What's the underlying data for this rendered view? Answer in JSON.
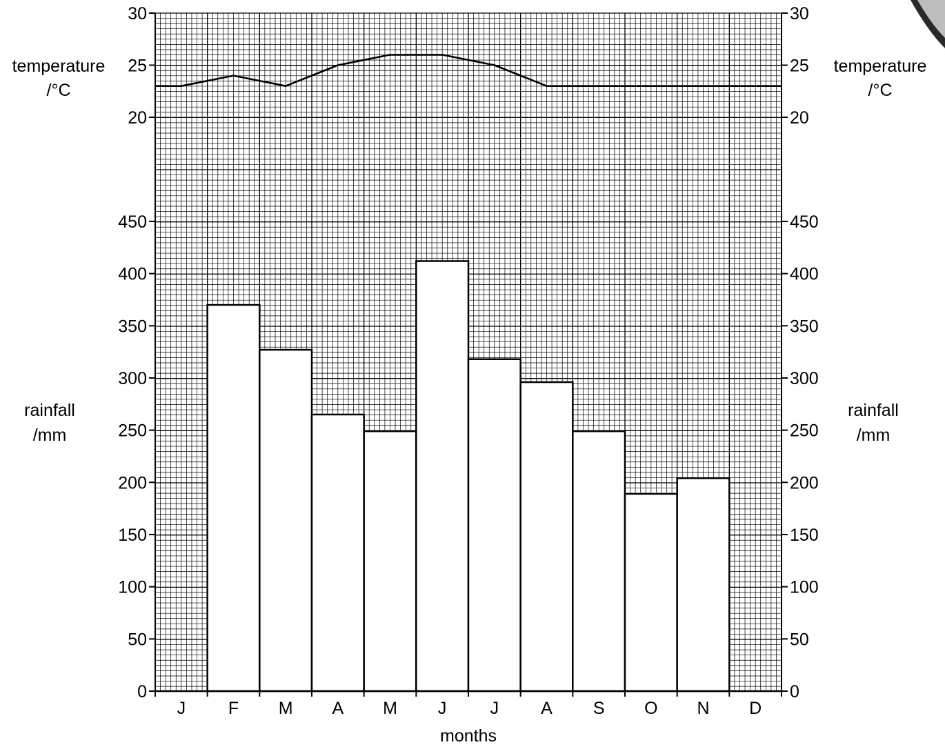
{
  "chart_data": {
    "type": "bar+line",
    "categories": [
      "J",
      "F",
      "M",
      "A",
      "M",
      "J",
      "J",
      "A",
      "S",
      "O",
      "N",
      "D"
    ],
    "xlabel": "months",
    "temperature": {
      "axis_label_line1": "temperature",
      "axis_label_line2": "/°C",
      "ylim": [
        20,
        30
      ],
      "ticks": [
        "20",
        "25",
        "30"
      ],
      "values": [
        23,
        24,
        23,
        25,
        26,
        26,
        25,
        23,
        23,
        23,
        23,
        23
      ],
      "line_start_value": 23,
      "line_end_value": 23
    },
    "rainfall": {
      "axis_label_line1": "rainfall",
      "axis_label_line2": "/mm",
      "ylim": [
        0,
        450
      ],
      "ticks": [
        "0",
        "50",
        "100",
        "150",
        "200",
        "250",
        "300",
        "350",
        "400",
        "450"
      ],
      "values": [
        0,
        370,
        327,
        265,
        249,
        412,
        318,
        296,
        249,
        189,
        204,
        0
      ]
    },
    "grid": true
  },
  "colors": {
    "grid": "#000000",
    "bar_fill": "#ffffff",
    "line": "#000000"
  }
}
